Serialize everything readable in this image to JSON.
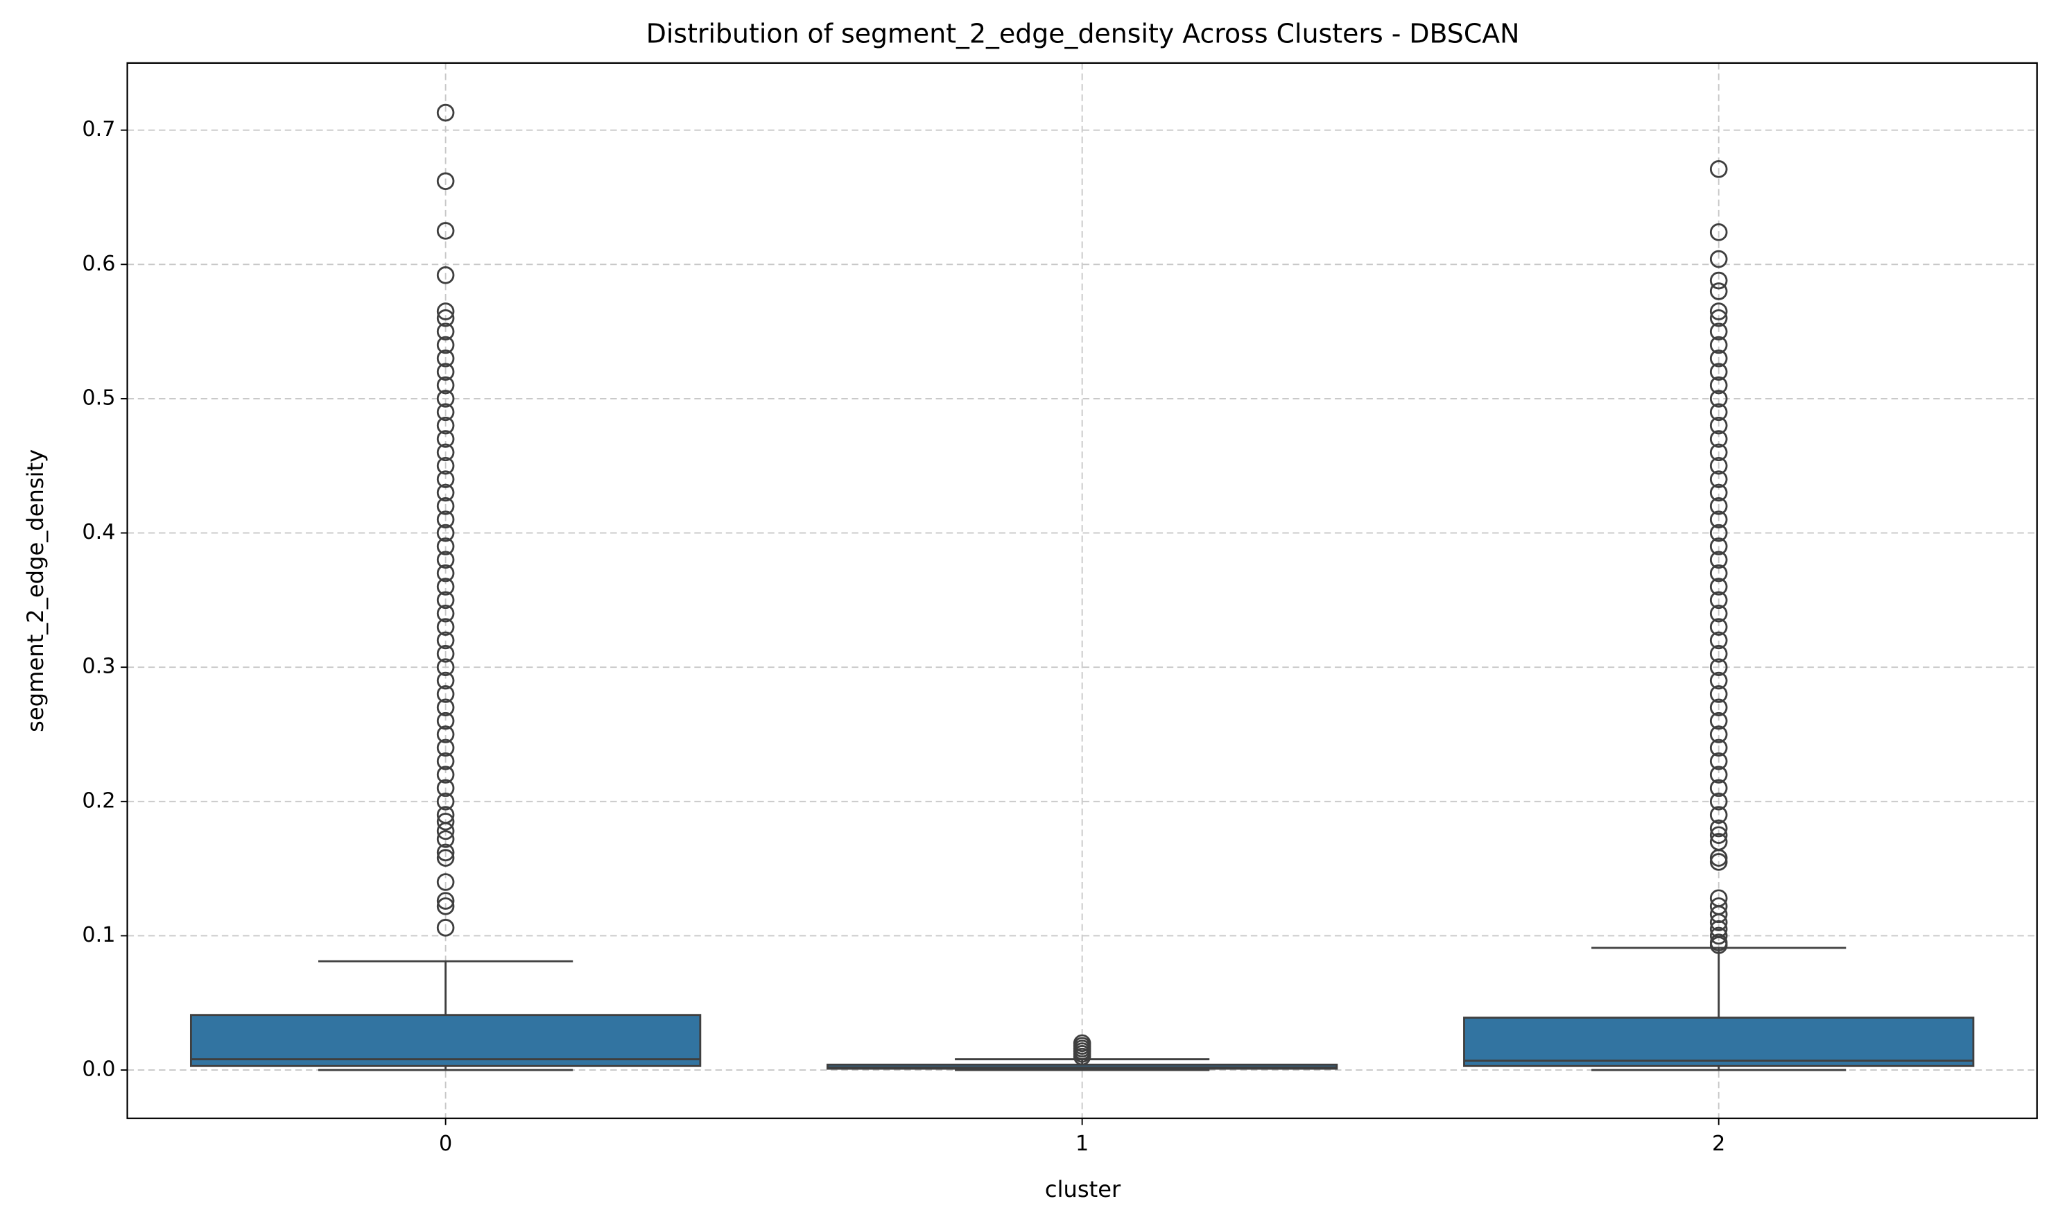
{
  "chart_data": {
    "type": "box",
    "title": "Distribution of segment_2_edge_density Across Clusters - DBSCAN",
    "x_label": "cluster",
    "y_label": "segment_2_edge_density",
    "categories": [
      "0",
      "1",
      "2"
    ],
    "color": "#3274a1",
    "edge_color": "#3f3f3f",
    "grid": true,
    "ylim": [
      -0.036,
      0.75
    ],
    "yticks": [
      {
        "value": 0,
        "label": "0.0"
      },
      0.1,
      0.2,
      0.3,
      0.4,
      0.5,
      0.6,
      0.7
    ],
    "boxes": [
      {
        "whisker_low": 0.0,
        "q1": 0.003,
        "median": 0.008,
        "q3": 0.041,
        "whisker_high": 0.081,
        "outliers": [
          0.106,
          0.122,
          0.126,
          0.14,
          0.158,
          0.162,
          0.172,
          0.178,
          0.185,
          0.19,
          0.2,
          0.21,
          0.22,
          0.23,
          0.24,
          0.25,
          0.26,
          0.27,
          0.28,
          0.29,
          0.3,
          0.31,
          0.32,
          0.33,
          0.34,
          0.35,
          0.36,
          0.37,
          0.38,
          0.39,
          0.4,
          0.41,
          0.42,
          0.43,
          0.44,
          0.45,
          0.46,
          0.47,
          0.48,
          0.49,
          0.5,
          0.51,
          0.52,
          0.53,
          0.54,
          0.55,
          0.56,
          0.565,
          0.592,
          0.625,
          0.662,
          0.713
        ]
      },
      {
        "whisker_low": 0.0,
        "q1": 0.001,
        "median": 0.002,
        "q3": 0.004,
        "whisker_high": 0.008,
        "outliers": [
          0.01,
          0.012,
          0.014,
          0.016,
          0.018,
          0.02
        ]
      },
      {
        "whisker_low": 0.0,
        "q1": 0.003,
        "median": 0.007,
        "q3": 0.039,
        "whisker_high": 0.091,
        "outliers": [
          0.093,
          0.095,
          0.1,
          0.105,
          0.11,
          0.116,
          0.122,
          0.128,
          0.155,
          0.158,
          0.17,
          0.175,
          0.18,
          0.19,
          0.2,
          0.21,
          0.22,
          0.23,
          0.24,
          0.25,
          0.26,
          0.27,
          0.28,
          0.29,
          0.3,
          0.31,
          0.32,
          0.33,
          0.34,
          0.35,
          0.36,
          0.37,
          0.38,
          0.39,
          0.4,
          0.41,
          0.42,
          0.43,
          0.44,
          0.45,
          0.46,
          0.47,
          0.48,
          0.49,
          0.5,
          0.51,
          0.52,
          0.53,
          0.54,
          0.55,
          0.56,
          0.565,
          0.58,
          0.588,
          0.604,
          0.624,
          0.671
        ]
      }
    ]
  }
}
